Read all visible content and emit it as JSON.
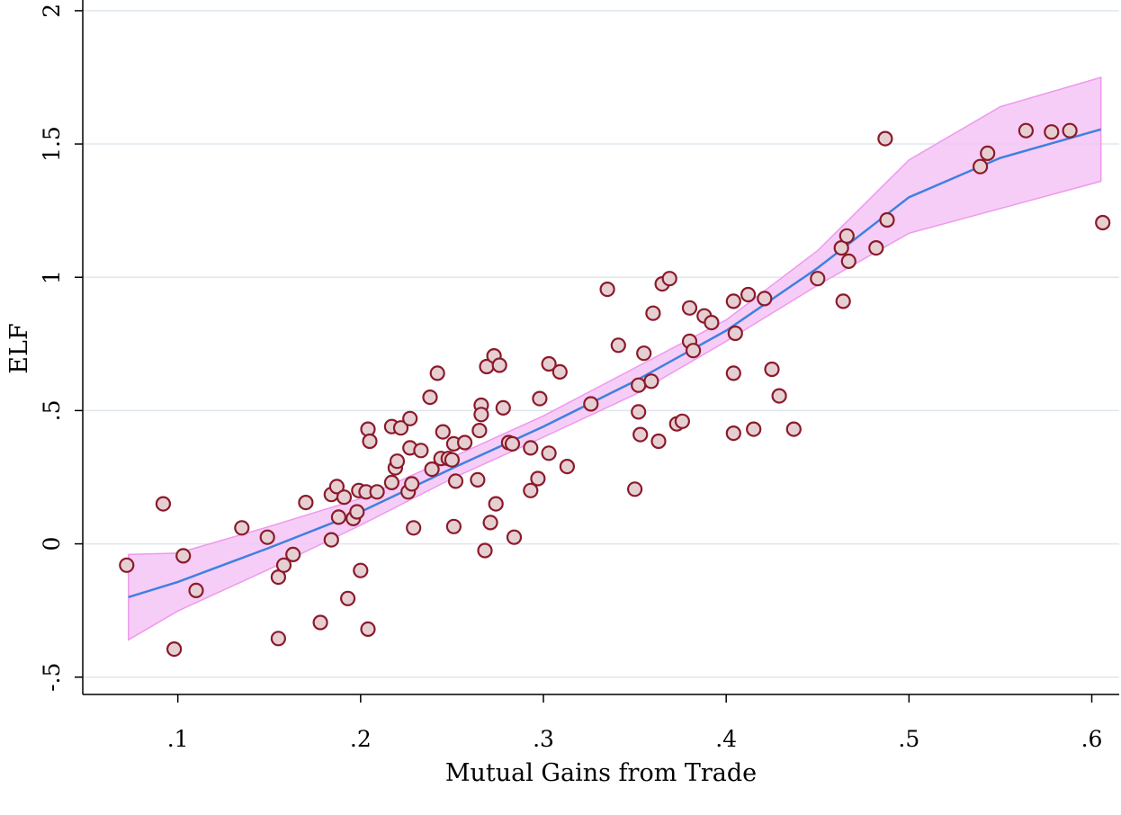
{
  "chart_data": {
    "type": "scatter",
    "title": "",
    "xlabel": "Mutual Gains from Trade",
    "ylabel": "ELF",
    "xlim": [
      0.048,
      0.615
    ],
    "ylim": [
      -0.565,
      2.03
    ],
    "x_ticks": [
      0.1,
      0.2,
      0.3,
      0.4,
      0.5,
      0.6
    ],
    "x_tick_labels": [
      ".1",
      ".2",
      ".3",
      ".4",
      ".5",
      ".6"
    ],
    "y_ticks": [
      -0.5,
      0,
      0.5,
      1,
      1.5,
      2
    ],
    "y_tick_labels": [
      "-.5",
      "0",
      ".5",
      "1",
      "1.5",
      "2"
    ],
    "grid": true,
    "colors": {
      "marker_fill": "#e6cfd2",
      "marker_edge": "#8b1a2b",
      "fit_line": "#4080e0",
      "ci_fill": "#f4c4f4",
      "ci_edge": "#ee99ee",
      "grid": "#dfe7ee"
    },
    "series": [
      {
        "type": "scatter",
        "points": [
          [
            0.072,
            -0.08
          ],
          [
            0.092,
            0.15
          ],
          [
            0.098,
            -0.395
          ],
          [
            0.103,
            -0.045
          ],
          [
            0.11,
            -0.175
          ],
          [
            0.135,
            0.06
          ],
          [
            0.149,
            0.025
          ],
          [
            0.155,
            -0.125
          ],
          [
            0.155,
            -0.355
          ],
          [
            0.158,
            -0.08
          ],
          [
            0.163,
            -0.04
          ],
          [
            0.17,
            0.155
          ],
          [
            0.178,
            -0.295
          ],
          [
            0.184,
            0.015
          ],
          [
            0.184,
            0.185
          ],
          [
            0.187,
            0.215
          ],
          [
            0.188,
            0.1
          ],
          [
            0.191,
            0.175
          ],
          [
            0.193,
            -0.205
          ],
          [
            0.196,
            0.095
          ],
          [
            0.198,
            0.12
          ],
          [
            0.199,
            0.2
          ],
          [
            0.2,
            -0.1
          ],
          [
            0.203,
            0.195
          ],
          [
            0.204,
            0.43
          ],
          [
            0.204,
            -0.32
          ],
          [
            0.205,
            0.385
          ],
          [
            0.209,
            0.195
          ],
          [
            0.217,
            0.44
          ],
          [
            0.217,
            0.23
          ],
          [
            0.219,
            0.285
          ],
          [
            0.22,
            0.31
          ],
          [
            0.222,
            0.435
          ],
          [
            0.226,
            0.195
          ],
          [
            0.227,
            0.47
          ],
          [
            0.227,
            0.36
          ],
          [
            0.228,
            0.225
          ],
          [
            0.229,
            0.06
          ],
          [
            0.233,
            0.35
          ],
          [
            0.238,
            0.55
          ],
          [
            0.239,
            0.28
          ],
          [
            0.242,
            0.64
          ],
          [
            0.244,
            0.32
          ],
          [
            0.245,
            0.42
          ],
          [
            0.248,
            0.32
          ],
          [
            0.25,
            0.315
          ],
          [
            0.251,
            0.375
          ],
          [
            0.251,
            0.065
          ],
          [
            0.252,
            0.235
          ],
          [
            0.257,
            0.38
          ],
          [
            0.264,
            0.24
          ],
          [
            0.265,
            0.425
          ],
          [
            0.266,
            0.52
          ],
          [
            0.266,
            0.485
          ],
          [
            0.268,
            -0.025
          ],
          [
            0.269,
            0.665
          ],
          [
            0.271,
            0.08
          ],
          [
            0.273,
            0.705
          ],
          [
            0.274,
            0.15
          ],
          [
            0.276,
            0.67
          ],
          [
            0.278,
            0.51
          ],
          [
            0.281,
            0.38
          ],
          [
            0.283,
            0.375
          ],
          [
            0.284,
            0.025
          ],
          [
            0.293,
            0.36
          ],
          [
            0.293,
            0.2
          ],
          [
            0.297,
            0.245
          ],
          [
            0.298,
            0.545
          ],
          [
            0.303,
            0.675
          ],
          [
            0.303,
            0.34
          ],
          [
            0.309,
            0.645
          ],
          [
            0.313,
            0.29
          ],
          [
            0.326,
            0.525
          ],
          [
            0.335,
            0.955
          ],
          [
            0.341,
            0.745
          ],
          [
            0.35,
            0.205
          ],
          [
            0.352,
            0.595
          ],
          [
            0.352,
            0.495
          ],
          [
            0.353,
            0.41
          ],
          [
            0.355,
            0.715
          ],
          [
            0.359,
            0.61
          ],
          [
            0.36,
            0.865
          ],
          [
            0.363,
            0.385
          ],
          [
            0.365,
            0.975
          ],
          [
            0.369,
            0.995
          ],
          [
            0.373,
            0.45
          ],
          [
            0.376,
            0.46
          ],
          [
            0.38,
            0.885
          ],
          [
            0.38,
            0.76
          ],
          [
            0.382,
            0.725
          ],
          [
            0.388,
            0.855
          ],
          [
            0.392,
            0.83
          ],
          [
            0.404,
            0.91
          ],
          [
            0.404,
            0.64
          ],
          [
            0.404,
            0.415
          ],
          [
            0.405,
            0.79
          ],
          [
            0.412,
            0.935
          ],
          [
            0.415,
            0.43
          ],
          [
            0.421,
            0.92
          ],
          [
            0.425,
            0.655
          ],
          [
            0.429,
            0.555
          ],
          [
            0.437,
            0.43
          ],
          [
            0.45,
            0.995
          ],
          [
            0.463,
            1.11
          ],
          [
            0.464,
            0.91
          ],
          [
            0.466,
            1.155
          ],
          [
            0.467,
            1.06
          ],
          [
            0.482,
            1.11
          ],
          [
            0.487,
            1.52
          ],
          [
            0.488,
            1.215
          ],
          [
            0.539,
            1.415
          ],
          [
            0.543,
            1.465
          ],
          [
            0.564,
            1.55
          ],
          [
            0.578,
            1.545
          ],
          [
            0.588,
            1.55
          ],
          [
            0.606,
            1.205
          ]
        ]
      },
      {
        "type": "line",
        "points": [
          [
            0.073,
            -0.2
          ],
          [
            0.1,
            -0.143
          ],
          [
            0.15,
            -0.015
          ],
          [
            0.2,
            0.12
          ],
          [
            0.25,
            0.283
          ],
          [
            0.3,
            0.44
          ],
          [
            0.35,
            0.61
          ],
          [
            0.4,
            0.8
          ],
          [
            0.45,
            1.035
          ],
          [
            0.5,
            1.3
          ],
          [
            0.55,
            1.448
          ],
          [
            0.605,
            1.555
          ]
        ]
      },
      {
        "type": "area",
        "upper": [
          [
            0.073,
            -0.04
          ],
          [
            0.1,
            -0.035
          ],
          [
            0.15,
            0.065
          ],
          [
            0.2,
            0.17
          ],
          [
            0.25,
            0.325
          ],
          [
            0.3,
            0.48
          ],
          [
            0.35,
            0.66
          ],
          [
            0.4,
            0.84
          ],
          [
            0.45,
            1.1
          ],
          [
            0.5,
            1.44
          ],
          [
            0.55,
            1.64
          ],
          [
            0.605,
            1.75
          ]
        ],
        "lower": [
          [
            0.073,
            -0.36
          ],
          [
            0.1,
            -0.252
          ],
          [
            0.15,
            -0.095
          ],
          [
            0.2,
            0.07
          ],
          [
            0.25,
            0.245
          ],
          [
            0.3,
            0.4
          ],
          [
            0.35,
            0.56
          ],
          [
            0.4,
            0.76
          ],
          [
            0.45,
            0.97
          ],
          [
            0.5,
            1.165
          ],
          [
            0.55,
            1.258
          ],
          [
            0.605,
            1.36
          ]
        ]
      }
    ]
  }
}
